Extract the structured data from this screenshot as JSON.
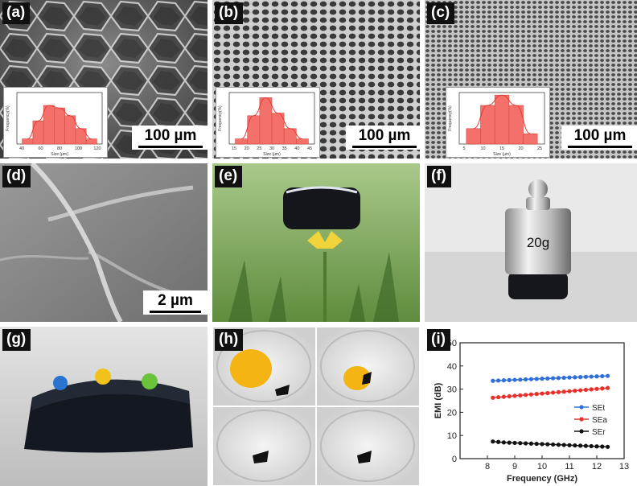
{
  "panels": {
    "a": {
      "label": "(a)",
      "scale": "100 µm",
      "hist_ticks": [
        "40",
        "60",
        "80",
        "100",
        "120"
      ],
      "hist_ylabel": "Frequency(%)",
      "hist_xlabel": "Size (µm)",
      "hist_values": [
        4,
        18,
        30,
        28,
        22,
        12,
        4
      ]
    },
    "b": {
      "label": "(b)",
      "scale": "100 µm",
      "hist_ticks": [
        "15",
        "20",
        "25",
        "30",
        "35",
        "40",
        "45"
      ],
      "hist_ylabel": "Frequency(%)",
      "hist_xlabel": "Size (µm)",
      "hist_values": [
        4,
        22,
        36,
        24,
        12,
        4
      ]
    },
    "c": {
      "label": "(c)",
      "scale": "100 µm",
      "hist_ticks": [
        "5",
        "10",
        "15",
        "20",
        "25"
      ],
      "hist_ylabel": "Frequency(%)",
      "hist_xlabel": "Size (µm)",
      "hist_values": [
        12,
        30,
        38,
        30,
        8
      ]
    },
    "d": {
      "label": "(d)",
      "scale": "2 µm"
    },
    "e": {
      "label": "(e)"
    },
    "f": {
      "label": "(f)",
      "weight_label": "20g"
    },
    "g": {
      "label": "(g)"
    },
    "h": {
      "label": "(h)"
    },
    "i": {
      "label": "(i)"
    }
  },
  "colors": {
    "hist_fill": "#f4706a",
    "hist_line": "#e23b2f",
    "set": "#2f6fd8",
    "sea": "#e8312b",
    "ser": "#111111"
  },
  "chart_data": {
    "type": "line",
    "xlabel": "Frequency (GHz)",
    "ylabel": "EMI (dB)",
    "xlim": [
      7,
      13
    ],
    "ylim": [
      0,
      50
    ],
    "xticks": [
      8,
      9,
      10,
      11,
      12,
      13
    ],
    "yticks": [
      0,
      10,
      20,
      30,
      40,
      50
    ],
    "legend_position": "bottom-right",
    "x": [
      8.2,
      8.4,
      8.6,
      8.8,
      9.0,
      9.2,
      9.4,
      9.6,
      9.8,
      10.0,
      10.2,
      10.4,
      10.6,
      10.8,
      11.0,
      11.2,
      11.4,
      11.6,
      11.8,
      12.0,
      12.2,
      12.4
    ],
    "series": [
      {
        "name": "SEt",
        "color": "#2f6fd8",
        "values": [
          33.6,
          33.7,
          33.8,
          33.9,
          34.0,
          34.1,
          34.2,
          34.3,
          34.4,
          34.5,
          34.6,
          34.7,
          34.8,
          34.9,
          35.0,
          35.1,
          35.2,
          35.3,
          35.4,
          35.5,
          35.6,
          35.7
        ]
      },
      {
        "name": "SEa",
        "color": "#e8312b",
        "values": [
          26.3,
          26.5,
          26.7,
          26.9,
          27.1,
          27.3,
          27.5,
          27.7,
          27.9,
          28.1,
          28.3,
          28.5,
          28.7,
          28.9,
          29.1,
          29.3,
          29.5,
          29.7,
          29.9,
          30.1,
          30.3,
          30.5
        ]
      },
      {
        "name": "SEr",
        "color": "#111111",
        "values": [
          7.4,
          7.2,
          7.0,
          6.9,
          6.8,
          6.7,
          6.6,
          6.5,
          6.4,
          6.3,
          6.2,
          6.1,
          6.0,
          5.9,
          5.8,
          5.7,
          5.6,
          5.5,
          5.4,
          5.3,
          5.2,
          5.1
        ]
      }
    ]
  }
}
